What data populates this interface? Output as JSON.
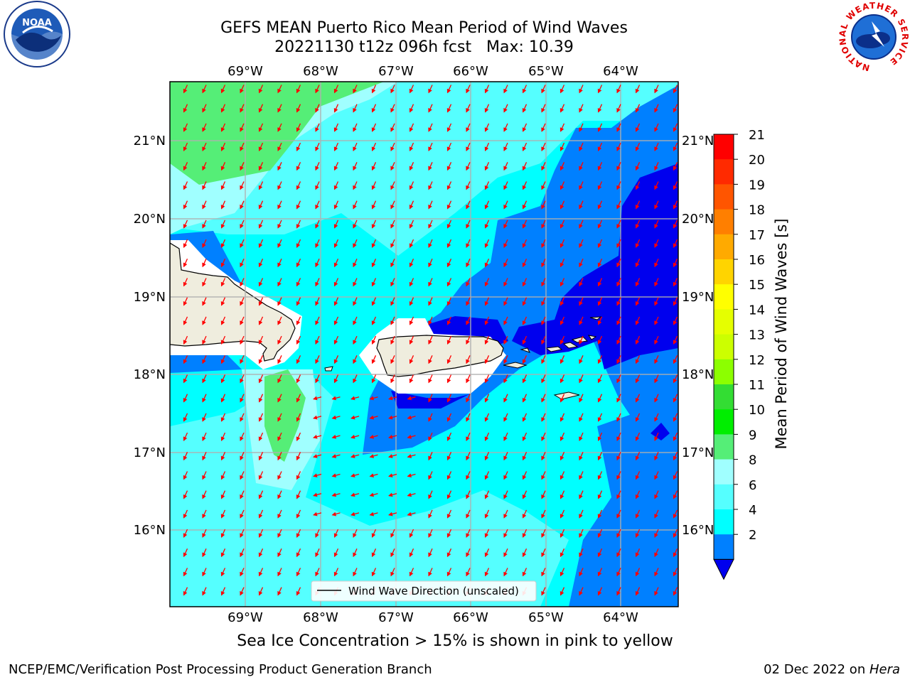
{
  "header": {
    "title_line1": "GEFS MEAN Puerto Rico Mean Period of Wind Waves",
    "title_line2": "20221130 t12z 096h fcst   Max: 10.39"
  },
  "logos": {
    "left": "NOAA",
    "right": "NATIONAL WEATHER SERVICE"
  },
  "map": {
    "lon_labels": [
      "69°W",
      "68°W",
      "67°W",
      "66°W",
      "65°W",
      "64°W"
    ],
    "lat_labels": [
      "21°N",
      "20°N",
      "19°N",
      "18°N",
      "17°N",
      "16°N"
    ],
    "legend_label": "Wind Wave Direction (unscaled)",
    "arrow_color": "#ff0000"
  },
  "colorbar": {
    "label": "Mean Period of Wind Waves [s]",
    "ticks": [
      "21",
      "20",
      "19",
      "18",
      "17",
      "16",
      "15",
      "14",
      "13",
      "12",
      "11",
      "10",
      "9",
      "8",
      "6",
      "4",
      "2"
    ],
    "colors": [
      "#ff0000",
      "#ff2a00",
      "#ff5500",
      "#ff7f00",
      "#ffaa00",
      "#ffd400",
      "#ffff00",
      "#e5ff00",
      "#ccff00",
      "#8cff00",
      "#33dd33",
      "#00ee00",
      "#55ee77",
      "#a0ffff",
      "#55ffff",
      "#00ffff",
      "#0080ff"
    ],
    "under_color": "#0000ee"
  },
  "footer": {
    "note": "Sea Ice Concentration > 15% is shown in pink to yellow",
    "left": "NCEP/EMC/Verification Post Processing Product Generation Branch",
    "right_date": "02 Dec 2022 on ",
    "right_host": "Hera"
  }
}
